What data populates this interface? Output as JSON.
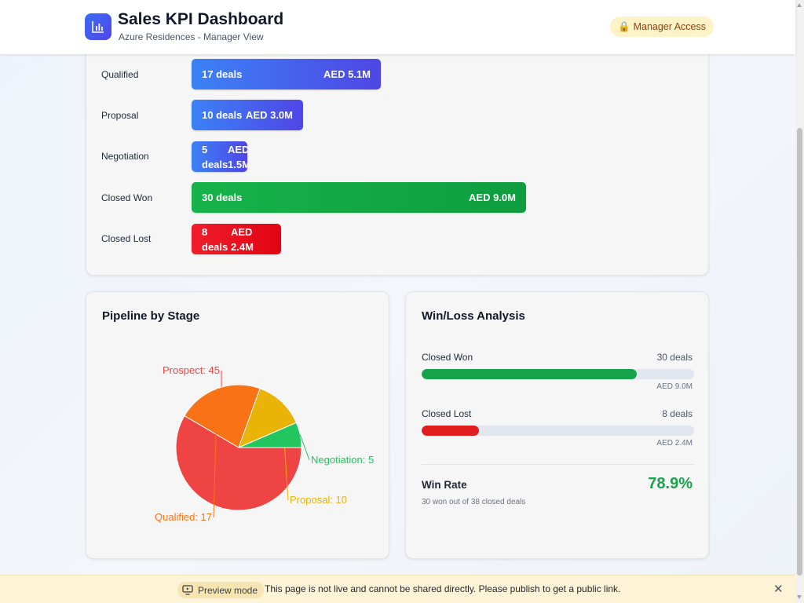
{
  "header": {
    "title": "Sales KPI Dashboard",
    "subtitle": "Azure Residences - Manager View",
    "access_badge": "Manager Access",
    "access_icon": "lock-icon",
    "logo_icon": "bar-chart-icon"
  },
  "funnel": {
    "stages": [
      {
        "label": "Qualified",
        "deals": "17 deals",
        "amount": "AED 5.1M",
        "count": 17,
        "value_m": 5.1,
        "color": "blue"
      },
      {
        "label": "Proposal",
        "deals": "10 deals",
        "amount": "AED 3.0M",
        "count": 10,
        "value_m": 3.0,
        "color": "blue"
      },
      {
        "label": "Negotiation",
        "deals": "5 deals",
        "amount": "AED 1.5M",
        "count": 5,
        "value_m": 1.5,
        "color": "blue"
      },
      {
        "label": "Closed Won",
        "deals": "30 deals",
        "amount": "AED 9.0M",
        "count": 30,
        "value_m": 9.0,
        "color": "green"
      },
      {
        "label": "Closed Lost",
        "deals": "8 deals",
        "amount": "AED 2.4M",
        "count": 8,
        "value_m": 2.4,
        "color": "red"
      }
    ]
  },
  "pipeline_chart": {
    "title": "Pipeline by Stage"
  },
  "chart_data": {
    "type": "pie",
    "slices": [
      {
        "label": "Prospect",
        "value": 45,
        "display": "Prospect: 45",
        "color": "#ef4444"
      },
      {
        "label": "Qualified",
        "value": 17,
        "display": "Qualified: 17",
        "color": "#f97316"
      },
      {
        "label": "Proposal",
        "value": 10,
        "display": "Proposal: 10",
        "color": "#eab308"
      },
      {
        "label": "Negotiation",
        "value": 5,
        "display": "Negotiation: 5",
        "color": "#22c55e"
      }
    ]
  },
  "winloss": {
    "title": "Win/Loss Analysis",
    "won": {
      "label": "Closed Won",
      "count": "30 deals",
      "amount": "AED 9.0M",
      "fraction": 0.789,
      "color": "#16a34a"
    },
    "lost": {
      "label": "Closed Lost",
      "count": "8 deals",
      "amount": "AED 2.4M",
      "fraction": 0.211,
      "color": "#e11d1d"
    },
    "win_rate_label": "Win Rate",
    "win_rate_value": "78.9%",
    "win_rate_note": "30 won out of 38 closed deals"
  },
  "preview": {
    "pill_label": "Preview mode",
    "pill_icon": "monitor-play-icon",
    "message": "This page is not live and cannot be shared directly. Please publish to get a public link.",
    "close_icon": "close-icon"
  }
}
